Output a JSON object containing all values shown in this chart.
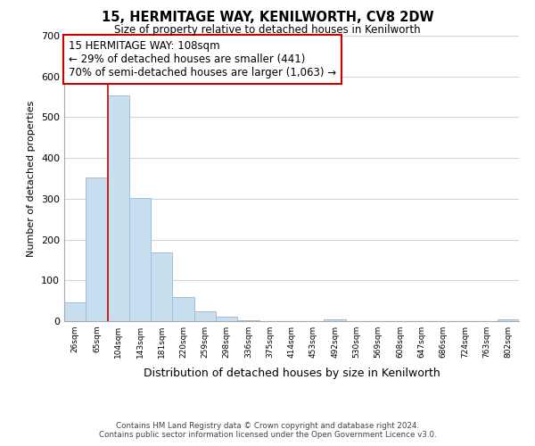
{
  "title": "15, HERMITAGE WAY, KENILWORTH, CV8 2DW",
  "subtitle": "Size of property relative to detached houses in Kenilworth",
  "xlabel": "Distribution of detached houses by size in Kenilworth",
  "ylabel": "Number of detached properties",
  "bar_color": "#c8dff0",
  "bar_edge_color": "#a0bcd8",
  "background_color": "#ffffff",
  "grid_color": "#c8d8e8",
  "bin_labels": [
    "26sqm",
    "65sqm",
    "104sqm",
    "143sqm",
    "181sqm",
    "220sqm",
    "259sqm",
    "298sqm",
    "336sqm",
    "375sqm",
    "414sqm",
    "453sqm",
    "492sqm",
    "530sqm",
    "569sqm",
    "608sqm",
    "647sqm",
    "686sqm",
    "724sqm",
    "763sqm",
    "802sqm"
  ],
  "bar_heights": [
    47,
    352,
    554,
    302,
    168,
    60,
    25,
    10,
    2,
    0,
    0,
    0,
    5,
    0,
    0,
    0,
    0,
    0,
    0,
    0,
    5
  ],
  "ylim": [
    0,
    700
  ],
  "yticks": [
    0,
    100,
    200,
    300,
    400,
    500,
    600,
    700
  ],
  "property_line_x": 2,
  "property_line_color": "#cc0000",
  "annotation_title": "15 HERMITAGE WAY: 108sqm",
  "annotation_line1": "← 29% of detached houses are smaller (441)",
  "annotation_line2": "70% of semi-detached houses are larger (1,063) →",
  "annotation_box_color": "#ffffff",
  "annotation_box_edge": "#cc0000",
  "footer_line1": "Contains HM Land Registry data © Crown copyright and database right 2024.",
  "footer_line2": "Contains public sector information licensed under the Open Government Licence v3.0."
}
